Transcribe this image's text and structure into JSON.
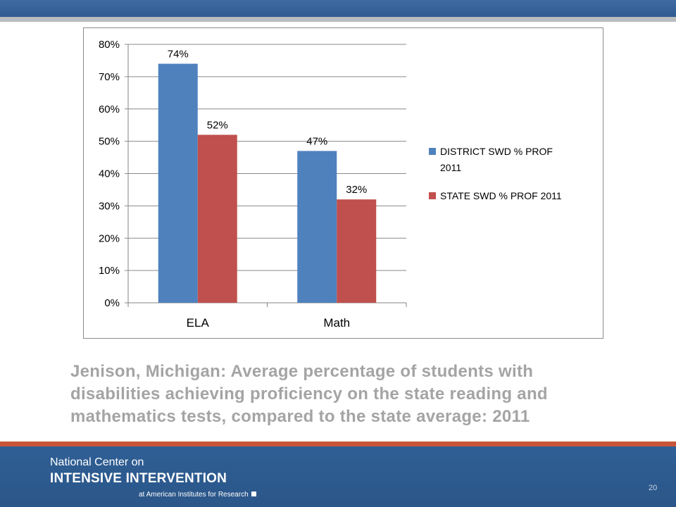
{
  "chart_data": {
    "type": "bar",
    "categories": [
      "ELA",
      "Math"
    ],
    "series": [
      {
        "name": "DISTRICT SWD % PROF 2011",
        "values": [
          74,
          47
        ],
        "labels": [
          "74%",
          "47%"
        ],
        "color": "#4f81bd"
      },
      {
        "name": "STATE SWD % PROF 2011",
        "values": [
          52,
          32
        ],
        "labels": [
          "52%",
          "32%"
        ],
        "color": "#c0504d"
      }
    ],
    "ylim": [
      0,
      80
    ],
    "yticks": [
      0,
      10,
      20,
      30,
      40,
      50,
      60,
      70,
      80
    ],
    "ytick_labels": [
      "0%",
      "10%",
      "20%",
      "30%",
      "40%",
      "50%",
      "60%",
      "70%",
      "80%"
    ],
    "grid": true,
    "legend_position": "right"
  },
  "legend": {
    "item1_line1": "DISTRICT SWD % PROF",
    "item1_line2": "2011",
    "item2": "STATE SWD % PROF 2011"
  },
  "caption": {
    "line1": "Jenison, Michigan: Average percentage of students with",
    "line2": "disabilities achieving proficiency on the state reading and",
    "line3": "mathematics tests, compared to the state average: 2011"
  },
  "footer": {
    "line1": "National Center on",
    "line2": "INTENSIVE INTERVENTION",
    "line3": "at American Institutes for Research",
    "page_number": "20"
  },
  "colors": {
    "header_blue": "#2f5a90",
    "accent_orange": "#c8553a",
    "caption_gray": "#a4a4a4"
  }
}
